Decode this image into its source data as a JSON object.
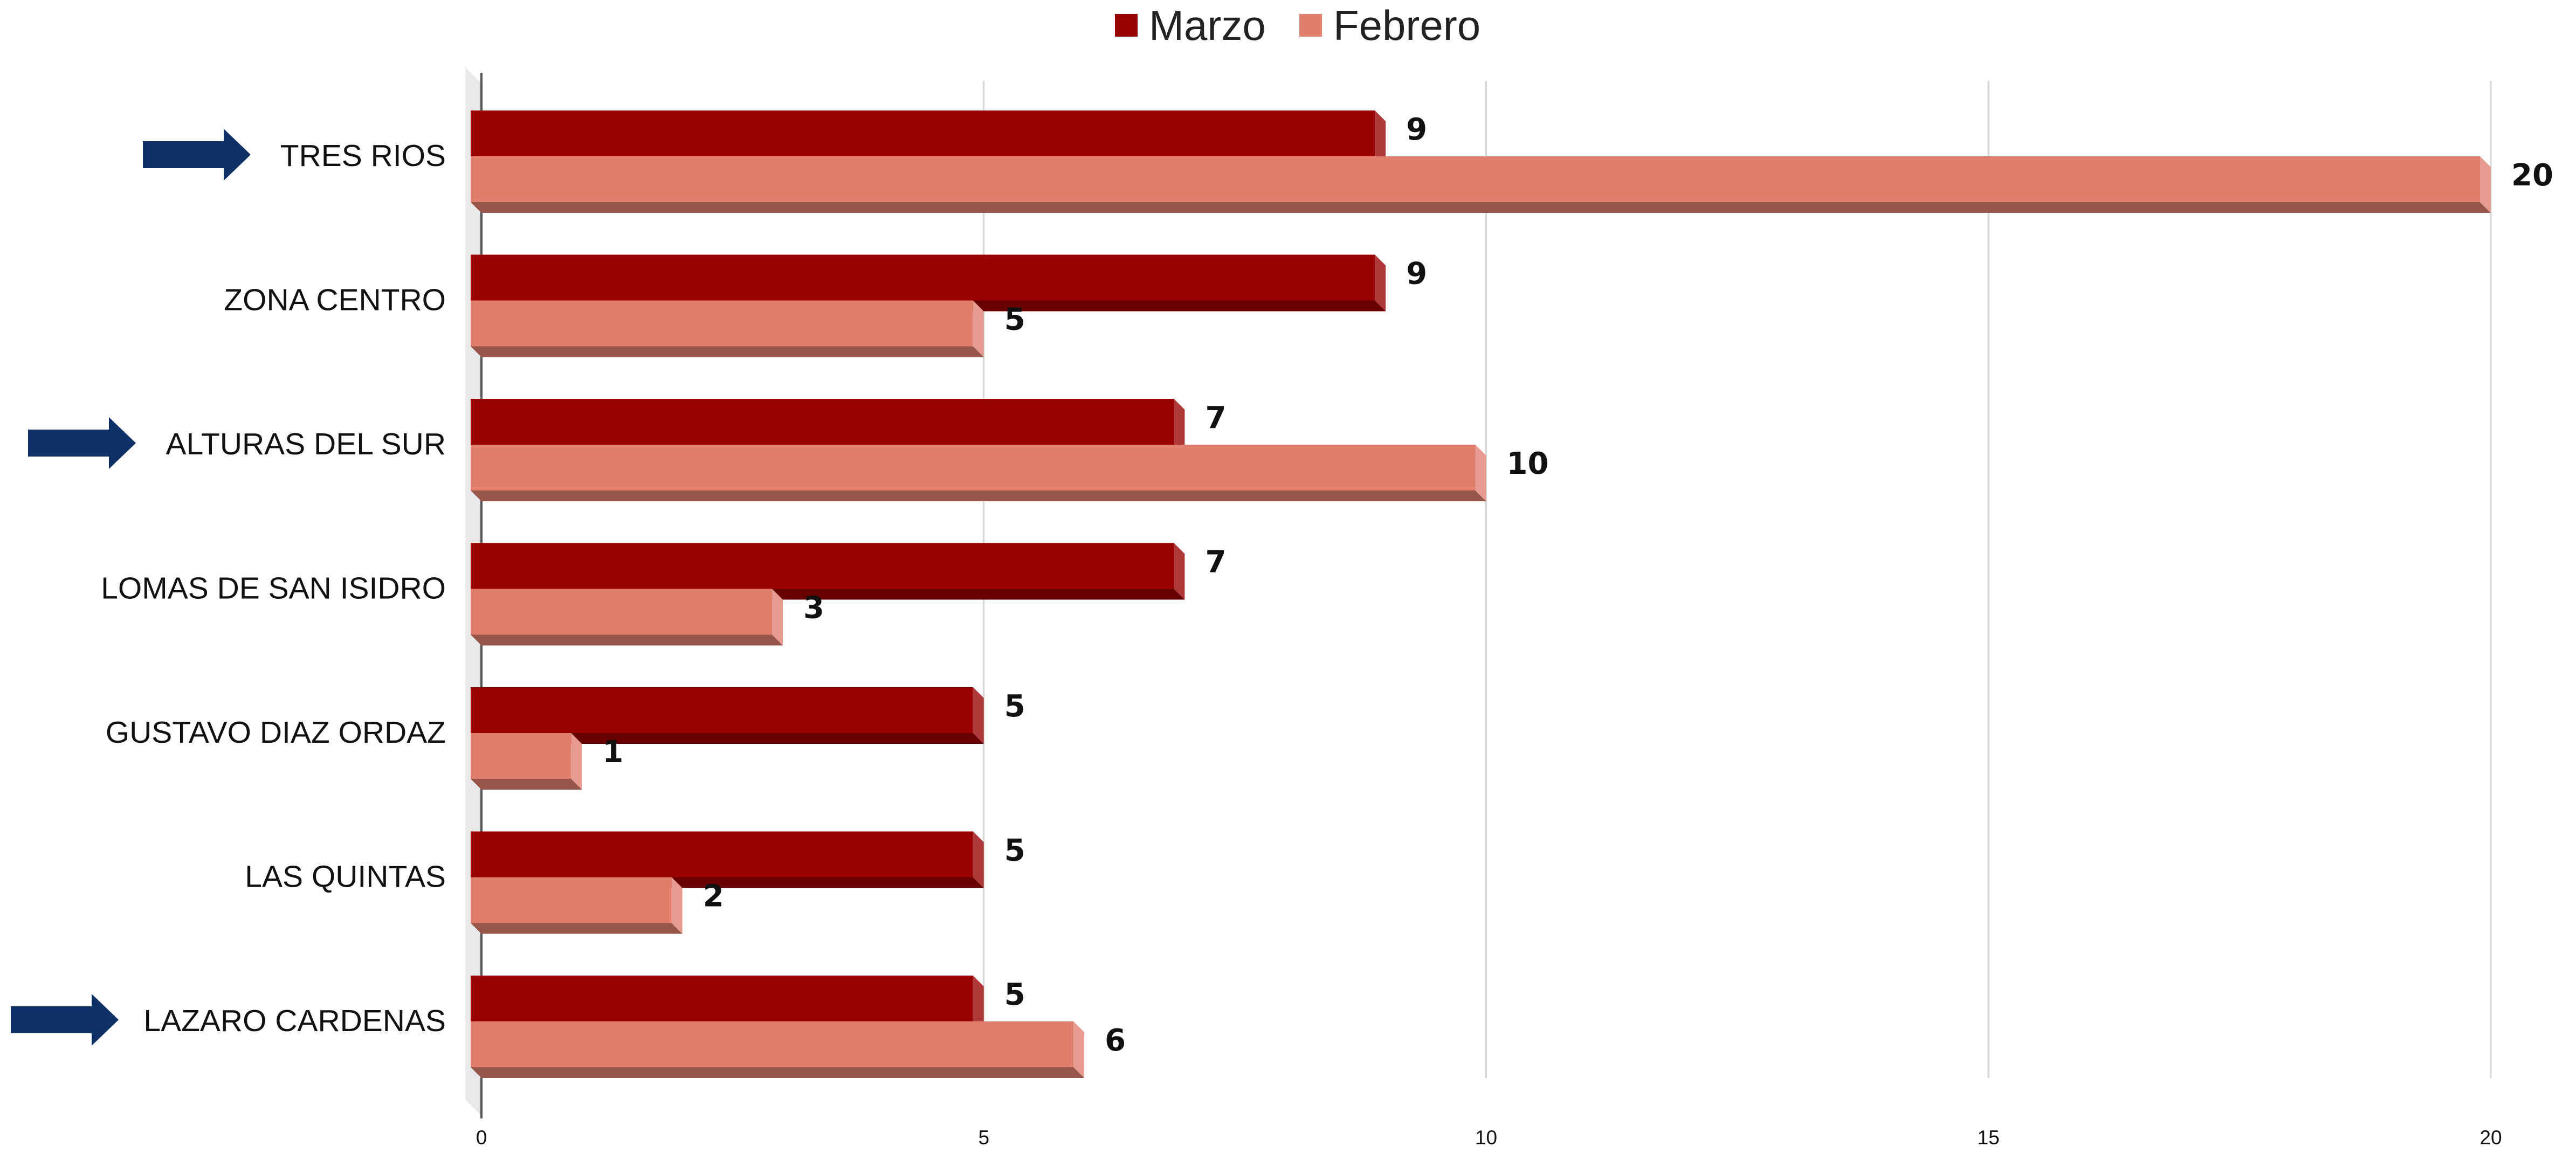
{
  "chart_data": {
    "type": "bar",
    "orientation": "horizontal",
    "style": "3d",
    "categories": [
      "TRES RIOS",
      "ZONA CENTRO",
      "ALTURAS DEL SUR",
      "LOMAS DE SAN ISIDRO",
      "GUSTAVO DIAZ ORDAZ",
      "LAS QUINTAS",
      "LAZARO CARDENAS"
    ],
    "series": [
      {
        "name": "Marzo",
        "color": "#990000",
        "values": [
          9,
          9,
          7,
          7,
          5,
          5,
          5
        ]
      },
      {
        "name": "Febrero",
        "color": "#e07f6e",
        "values": [
          20,
          5,
          10,
          3,
          1,
          2,
          6
        ]
      }
    ],
    "x_ticks": [
      0,
      5,
      10,
      15,
      20
    ],
    "xlim": [
      0,
      20
    ],
    "grid": true,
    "legend_position": "top-center",
    "data_labels": true,
    "highlighted_categories": [
      "TRES RIOS",
      "ALTURAS DEL SUR",
      "LAZARO CARDENAS"
    ],
    "highlight_marker": "arrow-right-icon",
    "highlight_color": "#0d3066"
  }
}
